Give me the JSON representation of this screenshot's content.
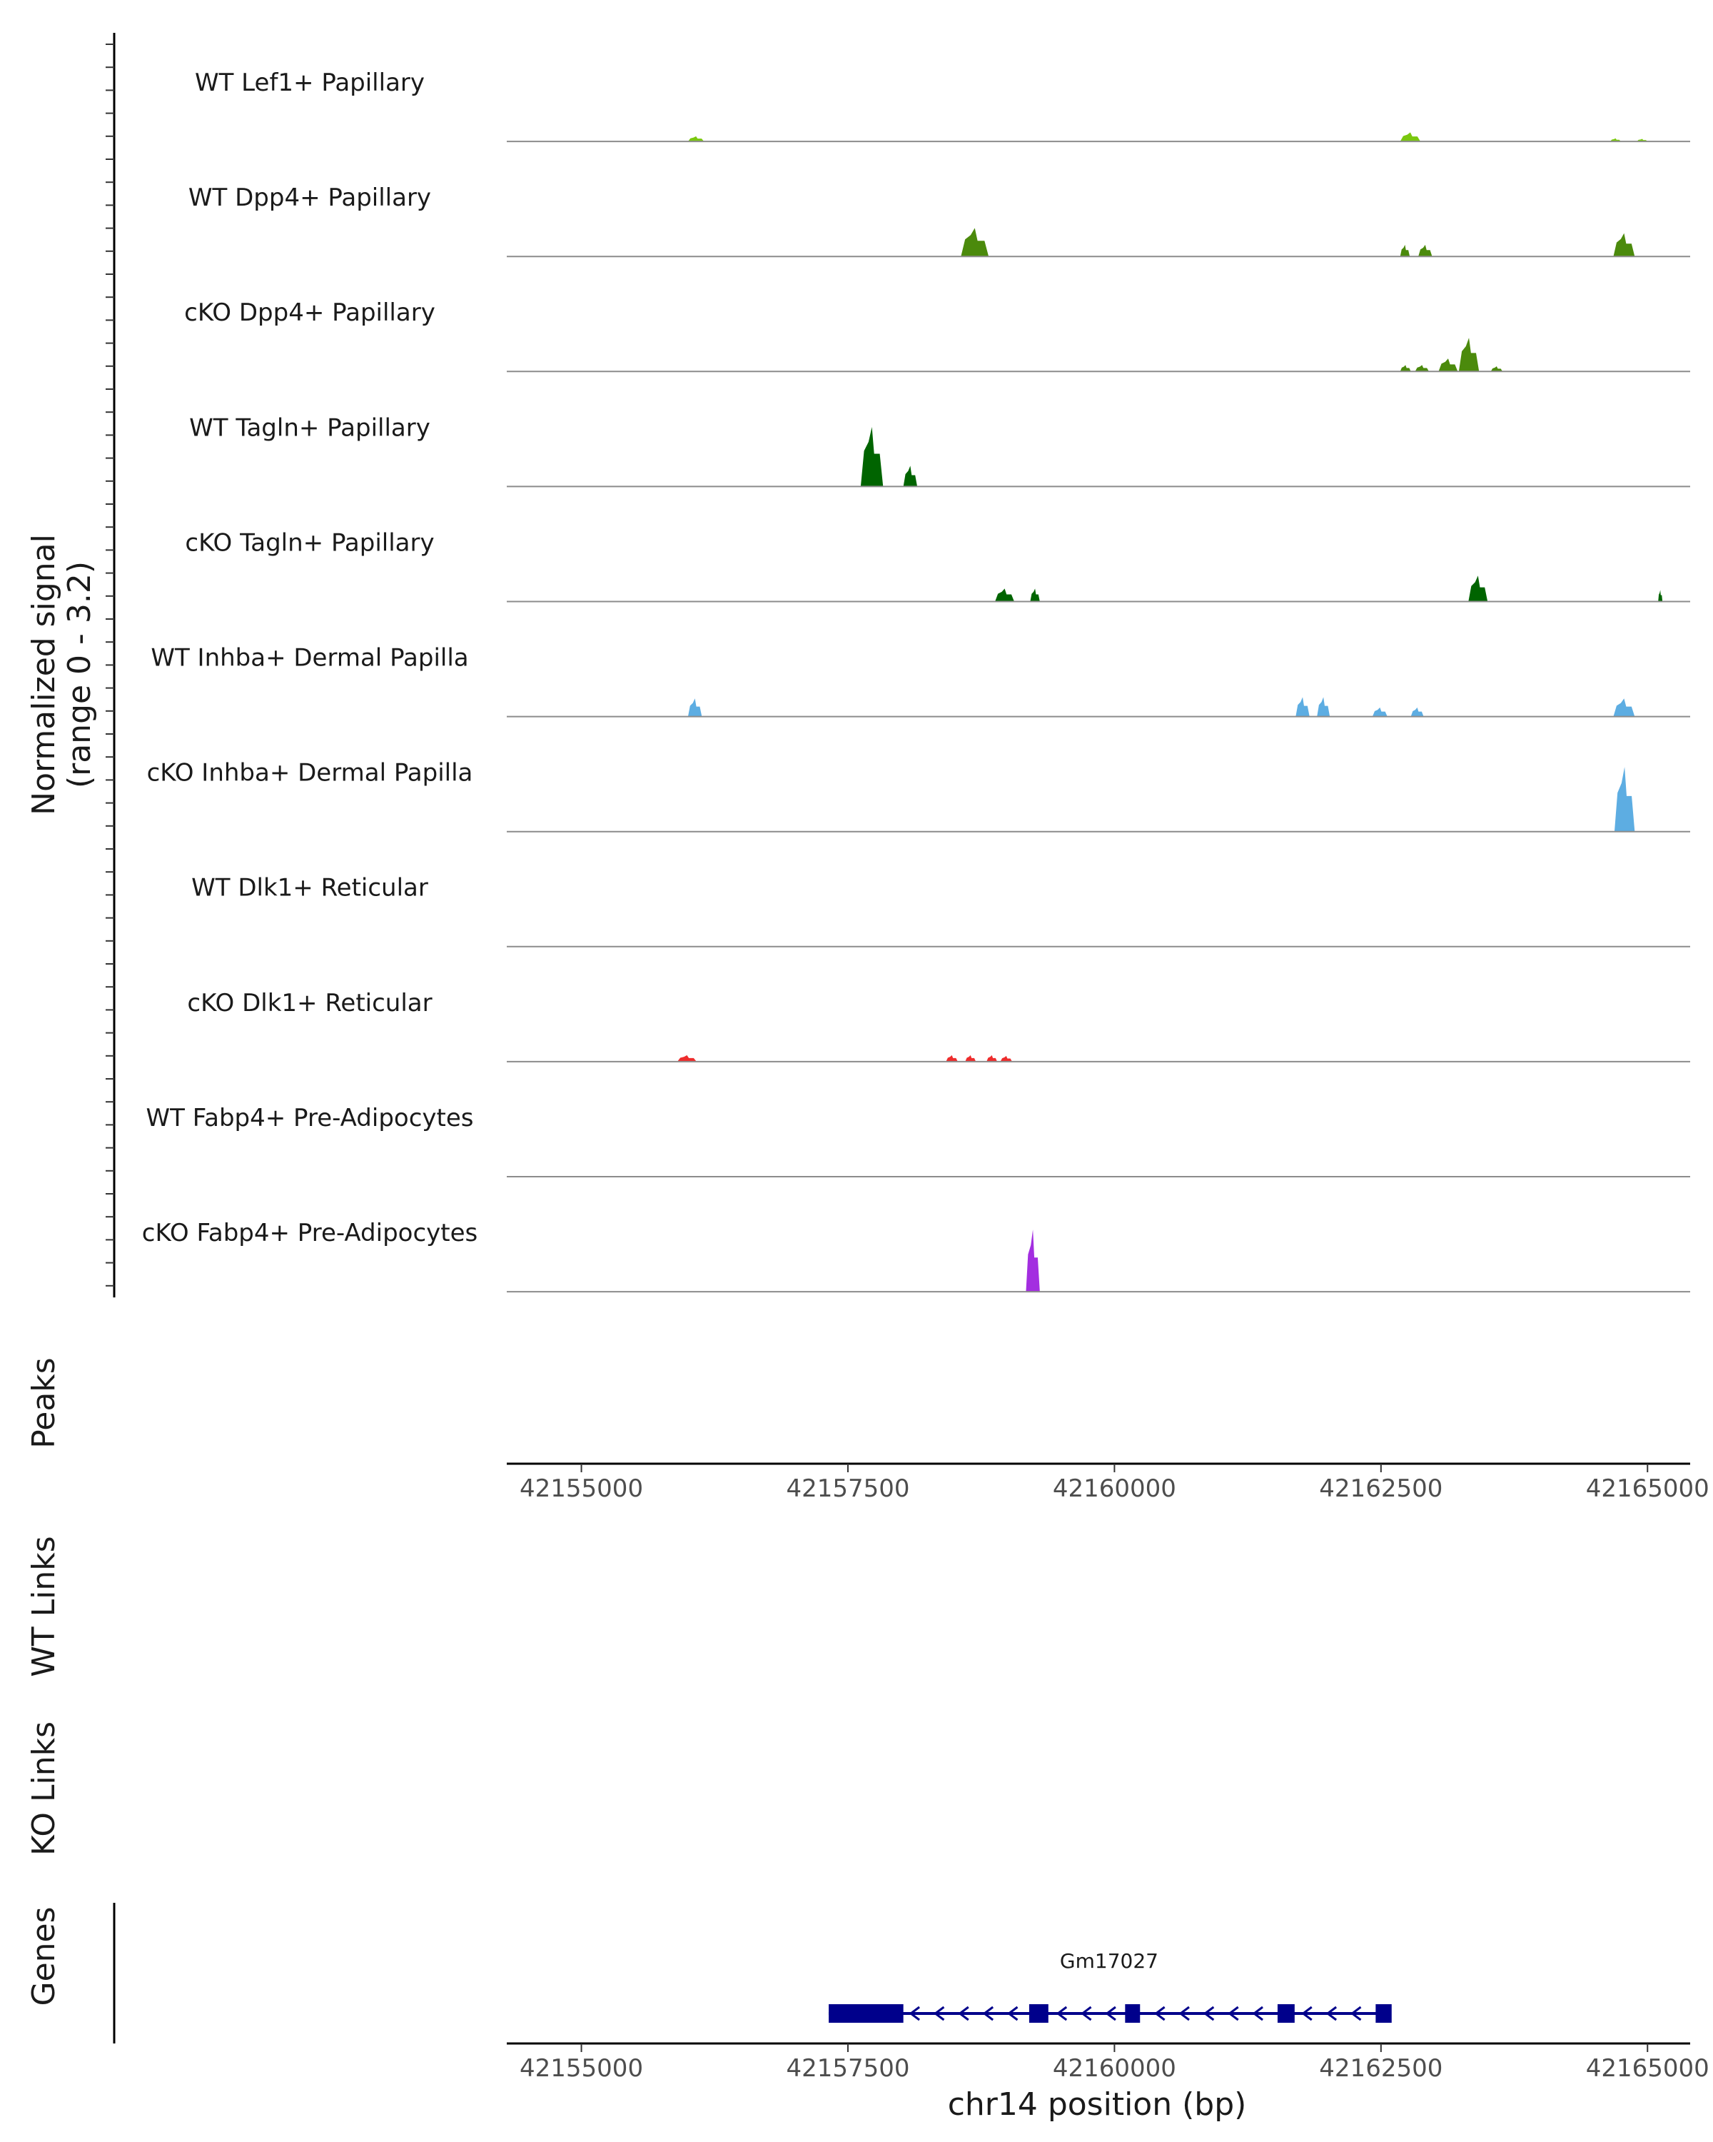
{
  "chart_data": {
    "type": "area",
    "xlabel": "chr14 position (bp)",
    "xlim": [
      42154300,
      42165400
    ],
    "x_ticks": [
      "42155000",
      "42157500",
      "42160000",
      "42162500",
      "42165000"
    ],
    "x_tick_values": [
      42155000,
      42157500,
      42160000,
      42162500,
      42165000
    ],
    "coverage": {
      "ylabel": "Normalized signal",
      "ylabel_range": "(range 0 - 3.2)",
      "ylim": [
        0,
        3.2
      ],
      "tracks": [
        {
          "name": "WT Lef1+ Papillary",
          "color": "#7ac70f",
          "peaks": [
            [
              42156000,
              42156150,
              0.2
            ],
            [
              42162680,
              42162870,
              0.35
            ],
            [
              42164650,
              42164750,
              0.12
            ],
            [
              42164900,
              42165000,
              0.1
            ]
          ]
        },
        {
          "name": "WT Dpp4+ Papillary",
          "color": "#4b8a0c",
          "peaks": [
            [
              42158560,
              42158820,
              1.1
            ],
            [
              42162680,
              42162770,
              0.45
            ],
            [
              42162850,
              42162980,
              0.45
            ],
            [
              42164680,
              42164880,
              0.9
            ]
          ]
        },
        {
          "name": "cKO Dpp4+ Papillary",
          "color": "#4b8a0c",
          "peaks": [
            [
              42162680,
              42162780,
              0.25
            ],
            [
              42162820,
              42162950,
              0.25
            ],
            [
              42163040,
              42163220,
              0.5
            ],
            [
              42163230,
              42163420,
              1.3
            ],
            [
              42163530,
              42163640,
              0.2
            ]
          ]
        },
        {
          "name": "WT Tagln+ Papillary",
          "color": "#006400",
          "peaks": [
            [
              42157620,
              42157830,
              2.3
            ],
            [
              42158020,
              42158150,
              0.8
            ]
          ]
        },
        {
          "name": "cKO Tagln+ Papillary",
          "color": "#006400",
          "peaks": [
            [
              42158880,
              42159060,
              0.5
            ],
            [
              42159210,
              42159300,
              0.5
            ],
            [
              42163320,
              42163500,
              1.0
            ],
            [
              42165100,
              42165140,
              0.45
            ]
          ]
        },
        {
          "name": "WT Inhba+ Dermal Papilla",
          "color": "#5dade2",
          "peaks": [
            [
              42156000,
              42156130,
              0.7
            ],
            [
              42161700,
              42161830,
              0.75
            ],
            [
              42161900,
              42162020,
              0.75
            ],
            [
              42162420,
              42162560,
              0.35
            ],
            [
              42162780,
              42162900,
              0.35
            ],
            [
              42164680,
              42164880,
              0.7
            ]
          ]
        },
        {
          "name": "cKO Inhba+ Dermal Papilla",
          "color": "#5dade2",
          "peaks": [
            [
              42164690,
              42164880,
              2.5
            ]
          ]
        },
        {
          "name": "WT Dlk1+ Reticular",
          "color": "#999999",
          "peaks": []
        },
        {
          "name": "cKO Dlk1+ Reticular",
          "color": "#ee2c2c",
          "peaks": [
            [
              42155900,
              42156080,
              0.25
            ],
            [
              42158420,
              42158530,
              0.25
            ],
            [
              42158600,
              42158700,
              0.25
            ],
            [
              42158800,
              42158900,
              0.25
            ],
            [
              42158930,
              42159040,
              0.22
            ]
          ]
        },
        {
          "name": "WT Fabp4+ Pre-Adipocytes",
          "color": "#999999",
          "peaks": []
        },
        {
          "name": "cKO Fabp4+ Pre-Adipocytes",
          "color": "#a32ee0",
          "peaks": [
            [
              42159170,
              42159300,
              2.4
            ]
          ]
        }
      ]
    },
    "panels": {
      "peaks_label": "Peaks",
      "wt_links_label": "WT Links",
      "ko_links_label": "KO Links",
      "genes_label": "Genes"
    },
    "gene": {
      "name": "Gm17027",
      "start": 42157320,
      "end": 42162580,
      "strand": "-",
      "color": "#00008b",
      "exons": [
        [
          42157320,
          42158020
        ],
        [
          42159200,
          42159380
        ],
        [
          42160100,
          42160240
        ],
        [
          42161530,
          42161690
        ],
        [
          42162450,
          42162600
        ]
      ]
    }
  }
}
